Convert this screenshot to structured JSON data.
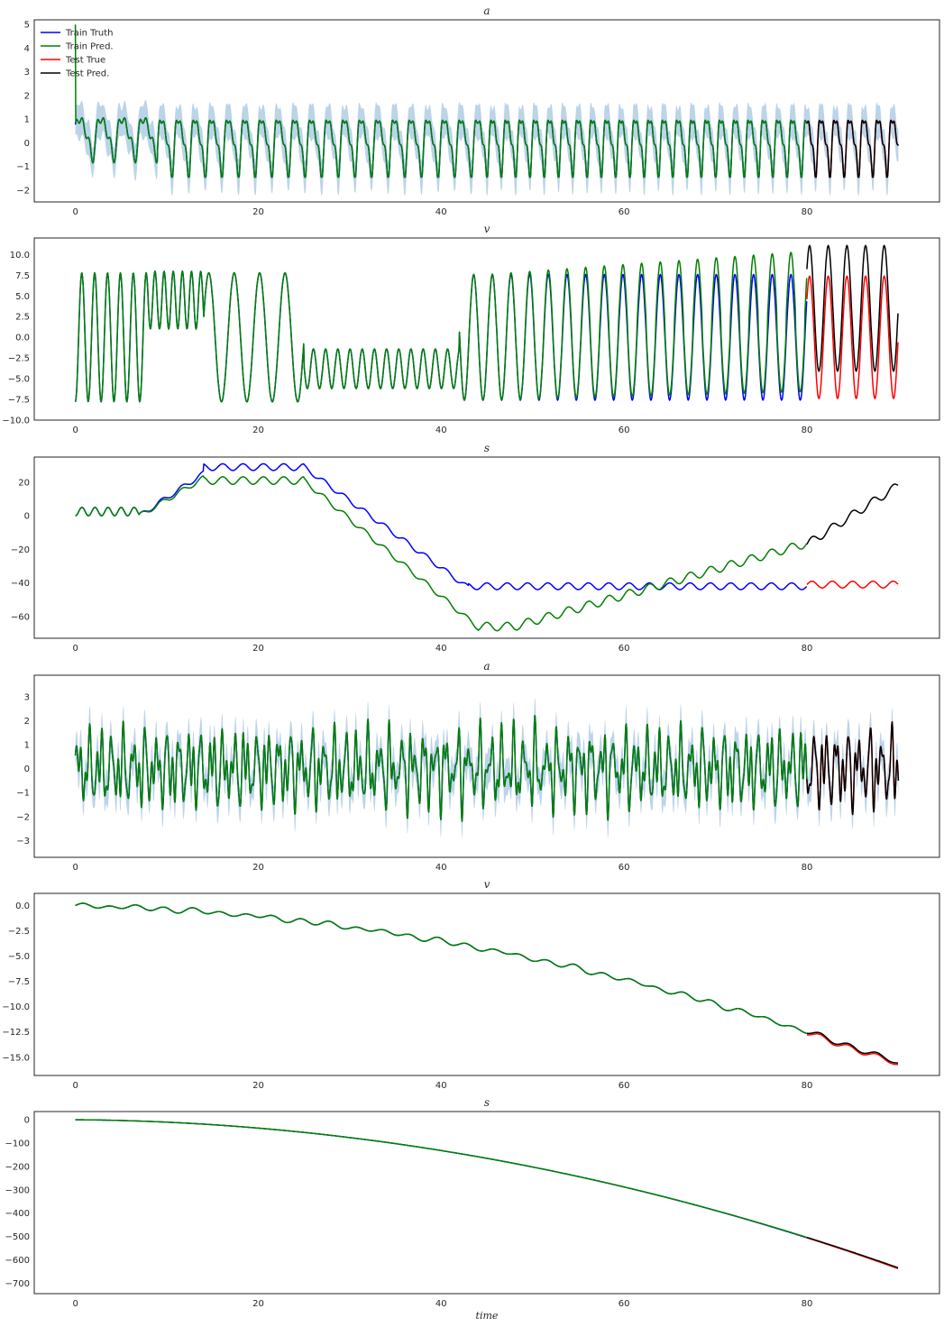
{
  "figure": {
    "xlabel": "time"
  },
  "legend": {
    "entries": [
      {
        "name": "Train Truth",
        "color": "#0000ff"
      },
      {
        "name": "Train Pred.",
        "color": "#008000"
      },
      {
        "name": "Test True",
        "color": "#ff0000"
      },
      {
        "name": "Test Pred.",
        "color": "#000000"
      }
    ],
    "placement": "top-left of first panel"
  },
  "colors": {
    "band": "#a6c6e0",
    "axes": "#262626"
  },
  "chart_data": [
    {
      "type": "line",
      "title": "a",
      "xlim": [
        -4.5,
        94.5
      ],
      "ylim": [
        -2.5,
        5.2
      ],
      "xticks": [
        0,
        20,
        40,
        60,
        80
      ],
      "yticks": [
        -2,
        -1,
        0,
        1,
        2,
        3,
        4,
        5
      ],
      "gen": {
        "kind": "osc_a1",
        "train_end": 80,
        "test_end": 90,
        "band": 0.7
      },
      "series": [
        {
          "name": "Train Truth",
          "samples": [
            [
              0,
              0.5
            ],
            [
              1.2,
              1.4
            ],
            [
              2,
              -0.7
            ],
            [
              3.6,
              1.4
            ],
            [
              4.6,
              -0.6
            ],
            [
              7,
              0.2
            ],
            [
              10,
              1.4
            ],
            [
              15,
              1.3
            ],
            [
              20,
              -0.5
            ],
            [
              40,
              1.4
            ],
            [
              60,
              1.35
            ],
            [
              79.9,
              -1.3
            ]
          ]
        },
        {
          "name": "Train Pred.",
          "samples": [
            [
              0,
              5.0
            ],
            [
              0.1,
              0.5
            ],
            [
              1.2,
              1.4
            ],
            [
              2,
              -0.7
            ],
            [
              7,
              0.2
            ],
            [
              40,
              1.4
            ],
            [
              79.9,
              -1.3
            ]
          ]
        },
        {
          "name": "Test True",
          "samples": [
            [
              80,
              1.35
            ],
            [
              81.5,
              -1.3
            ],
            [
              83,
              1.35
            ],
            [
              85,
              -1.3
            ],
            [
              90,
              1.3
            ]
          ]
        },
        {
          "name": "Test Pred.",
          "samples": [
            [
              80,
              1.35
            ],
            [
              81.5,
              -1.3
            ],
            [
              83,
              1.35
            ],
            [
              85,
              -1.3
            ],
            [
              90,
              1.3
            ]
          ]
        }
      ]
    },
    {
      "type": "line",
      "title": "v",
      "xlim": [
        -4.5,
        94.5
      ],
      "ylim": [
        -10,
        12
      ],
      "xticks": [
        0,
        20,
        40,
        60,
        80
      ],
      "yticks": [
        -10.0,
        -7.5,
        -5.0,
        -2.5,
        0.0,
        2.5,
        5.0,
        7.5,
        10.0
      ],
      "gen": {
        "kind": "v1",
        "train_end": 80,
        "test_end": 90
      },
      "series": [
        {
          "name": "Train Truth",
          "points": [
            [
              0,
              1.0
            ],
            [
              0.7,
              7.8
            ],
            [
              2.1,
              -7.7
            ],
            [
              3.5,
              7.7
            ],
            [
              5.1,
              -7.9
            ],
            [
              7.9,
              8.0
            ],
            [
              17,
              7.5
            ],
            [
              24,
              7.6
            ],
            [
              26,
              -1.0
            ],
            [
              42,
              -0.5
            ],
            [
              43.9,
              7.6
            ],
            [
              50,
              -7.5
            ],
            [
              79.5,
              -4.6
            ]
          ]
        },
        {
          "name": "Train Pred.",
          "points": [
            [
              0,
              1.0
            ],
            [
              0.7,
              7.8
            ],
            [
              2.1,
              -7.7
            ],
            [
              26,
              -1.6
            ],
            [
              43.9,
              7.7
            ],
            [
              50,
              -7.2
            ],
            [
              79,
              10.3
            ]
          ]
        },
        {
          "name": "Test True",
          "points": [
            [
              80,
              -4.3
            ],
            [
              81,
              7.4
            ],
            [
              82.2,
              -7.4
            ],
            [
              90,
              -3.5
            ]
          ]
        },
        {
          "name": "Test Pred.",
          "points": [
            [
              80,
              -3.0
            ],
            [
              81,
              10.5
            ],
            [
              82.2,
              -3.5
            ],
            [
              90,
              0.5
            ]
          ]
        }
      ]
    },
    {
      "type": "line",
      "title": "s",
      "xlim": [
        -4.5,
        94.5
      ],
      "ylim": [
        -73,
        35
      ],
      "xticks": [
        0,
        20,
        40,
        60,
        80
      ],
      "yticks": [
        -60,
        -40,
        -20,
        0,
        20
      ],
      "gen": {
        "kind": "s1",
        "train_end": 80,
        "test_end": 90
      },
      "series": [
        {
          "name": "Train Truth",
          "points": [
            [
              0,
              0
            ],
            [
              1.5,
              5
            ],
            [
              6,
              0
            ],
            [
              11,
              18
            ],
            [
              14.6,
              30
            ],
            [
              24.2,
              30
            ],
            [
              43.5,
              -43
            ],
            [
              80,
              -43
            ]
          ]
        },
        {
          "name": "Train Pred.",
          "points": [
            [
              0,
              0
            ],
            [
              1.5,
              5
            ],
            [
              6,
              0
            ],
            [
              14.6,
              25
            ],
            [
              24,
              20
            ],
            [
              43.5,
              -66
            ],
            [
              47,
              -69
            ],
            [
              71,
              -43
            ],
            [
              80,
              -17
            ]
          ]
        },
        {
          "name": "Test True",
          "points": [
            [
              80,
              -42
            ],
            [
              85,
              -40
            ],
            [
              90,
              -43
            ]
          ]
        },
        {
          "name": "Test Pred.",
          "points": [
            [
              80,
              -17
            ],
            [
              85,
              0
            ],
            [
              90,
              18
            ]
          ]
        }
      ]
    },
    {
      "type": "line",
      "title": "a",
      "xlim": [
        -4.5,
        94.5
      ],
      "ylim": [
        -3.7,
        3.9
      ],
      "xticks": [
        0,
        20,
        40,
        60,
        80
      ],
      "yticks": [
        -3,
        -2,
        -1,
        0,
        1,
        2,
        3
      ],
      "gen": {
        "kind": "osc_a2",
        "train_end": 80,
        "test_end": 90,
        "band": 0.7
      },
      "series": [
        {
          "name": "Train Truth",
          "samples": [
            [
              0,
              -0.3
            ],
            [
              0.6,
              1.9
            ],
            [
              1.1,
              -2.4
            ],
            [
              2.4,
              2.3
            ],
            [
              40.4,
              2.6
            ],
            [
              79.9,
              -1.6
            ]
          ]
        },
        {
          "name": "Train Pred.",
          "samples": [
            [
              0,
              -0.3
            ],
            [
              0.6,
              1.9
            ],
            [
              1.1,
              -2.4
            ],
            [
              2.4,
              2.3
            ],
            [
              79.9,
              -1.6
            ]
          ]
        },
        {
          "name": "Test True",
          "samples": [
            [
              80,
              2.0
            ],
            [
              82,
              -2.1
            ],
            [
              89,
              2.1
            ],
            [
              90,
              0.1
            ]
          ]
        },
        {
          "name": "Test Pred.",
          "samples": [
            [
              80,
              2.0
            ],
            [
              82,
              -2.1
            ],
            [
              89,
              2.1
            ],
            [
              90,
              0.1
            ]
          ]
        }
      ]
    },
    {
      "type": "line",
      "title": "v",
      "xlim": [
        -4.5,
        94.5
      ],
      "ylim": [
        -16.8,
        1.2
      ],
      "xticks": [
        0,
        20,
        40,
        60,
        80
      ],
      "yticks": [
        -15.0,
        -12.5,
        -10.0,
        -7.5,
        -5.0,
        -2.5,
        0.0
      ],
      "gen": {
        "kind": "v2",
        "train_end": 80,
        "test_end": 90
      },
      "series": [
        {
          "name": "Train Truth",
          "points": [
            [
              0,
              0.0
            ],
            [
              20,
              -3.3
            ],
            [
              40,
              -6.8
            ],
            [
              60,
              -10.8
            ],
            [
              80,
              -13.9
            ]
          ]
        },
        {
          "name": "Train Pred.",
          "points": [
            [
              0,
              0.0
            ],
            [
              20,
              -3.3
            ],
            [
              40,
              -6.7
            ],
            [
              60,
              -10.7
            ],
            [
              80,
              -13.8
            ]
          ]
        },
        {
          "name": "Test True",
          "points": [
            [
              80,
              -13.9
            ],
            [
              85,
              -15.0
            ],
            [
              90,
              -15.8
            ]
          ]
        },
        {
          "name": "Test Pred.",
          "points": [
            [
              80,
              -13.8
            ],
            [
              85,
              -14.8
            ],
            [
              90,
              -15.6
            ]
          ]
        }
      ]
    },
    {
      "type": "line",
      "title": "s",
      "xlim": [
        -4.5,
        94.5
      ],
      "ylim": [
        -745,
        35
      ],
      "xticks": [
        0,
        20,
        40,
        60,
        80
      ],
      "yticks": [
        -700,
        -600,
        -500,
        -400,
        -300,
        -200,
        -100,
        0
      ],
      "gen": {
        "kind": "s2",
        "train_end": 80,
        "test_end": 90
      },
      "series": [
        {
          "name": "Train Truth",
          "points": [
            [
              0,
              0
            ],
            [
              20,
              -37
            ],
            [
              40,
              -150
            ],
            [
              60,
              -320
            ],
            [
              80,
              -555
            ]
          ]
        },
        {
          "name": "Train Pred.",
          "points": [
            [
              0,
              0
            ],
            [
              20,
              -37
            ],
            [
              40,
              -150
            ],
            [
              60,
              -318
            ],
            [
              80,
              -553
            ]
          ]
        },
        {
          "name": "Test True",
          "points": [
            [
              80,
              -555
            ],
            [
              85,
              -630
            ],
            [
              90,
              -707
            ]
          ]
        },
        {
          "name": "Test Pred.",
          "points": [
            [
              80,
              -553
            ],
            [
              85,
              -625
            ],
            [
              90,
              -697
            ]
          ]
        }
      ]
    }
  ]
}
